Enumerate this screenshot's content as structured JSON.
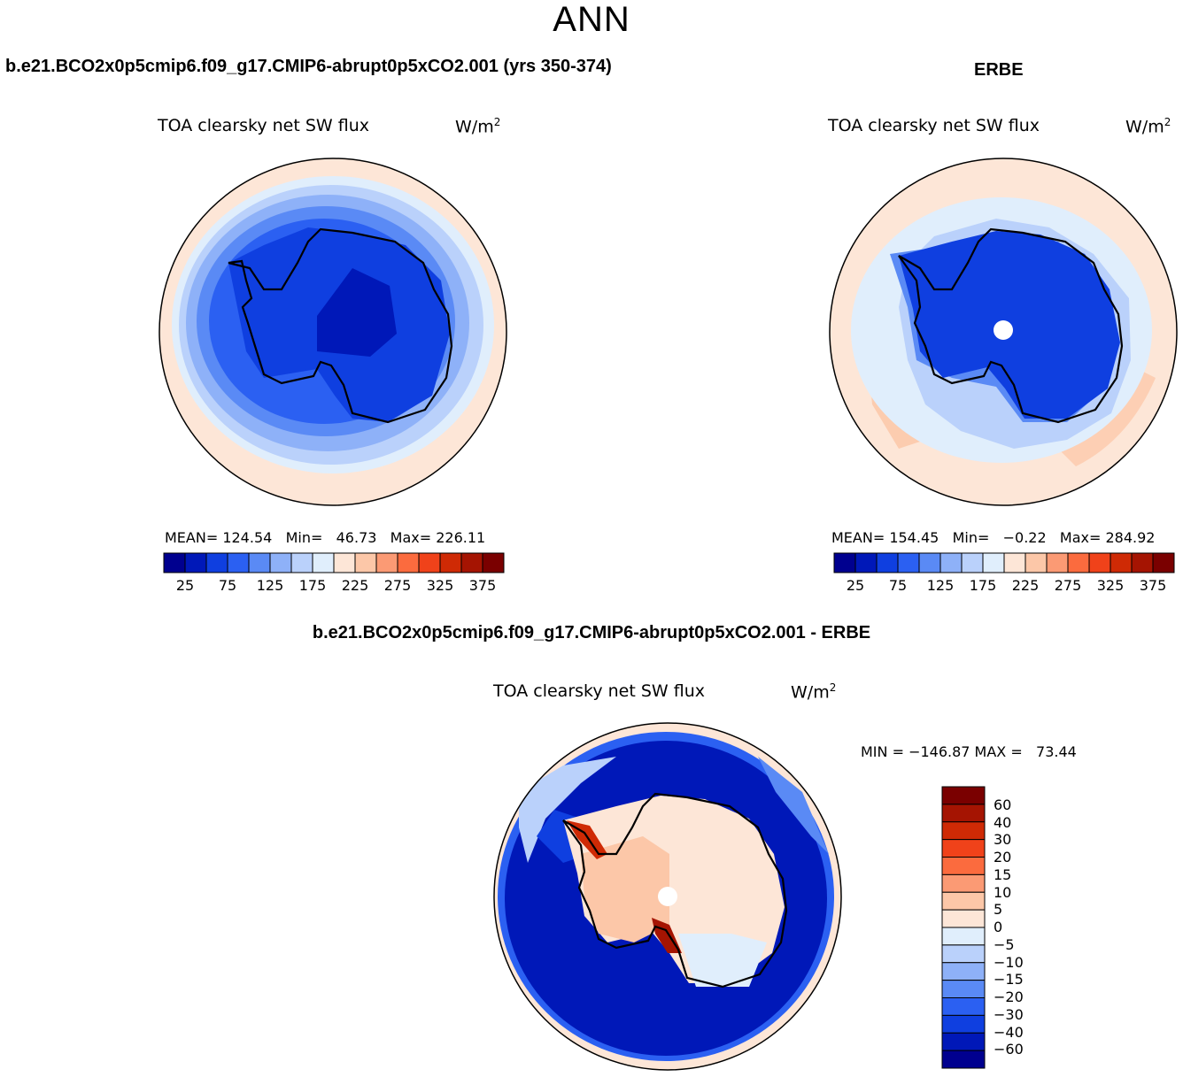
{
  "figure": {
    "title": "ANN",
    "colors": {
      "blues": [
        "#00008f",
        "#0018b8",
        "#0f3fe0",
        "#2b60f2",
        "#5a8af5",
        "#8eb1f8",
        "#bad1fb",
        "#e0eefc"
      ],
      "reds": [
        "#fde6d7",
        "#fcc7a8",
        "#fb9a74",
        "#fb6b3e",
        "#f0421a",
        "#cf2a05",
        "#a51402",
        "#7a0000"
      ],
      "land_outline": "#000000",
      "background_sea": "#fde6d7"
    }
  },
  "panels": {
    "model": {
      "case_title": "b.e21.BCO2x0p5cmip6.f09_g17.CMIP6-abrupt0p5xCO2.001 (yrs 350-374)",
      "variable": "TOA clearsky net SW flux",
      "units": "W/m",
      "units_sup": "2",
      "stats": "MEAN= 124.54   Min=   46.73   Max= 226.11",
      "colorbar_ticks": [
        "25",
        "75",
        "125",
        "175",
        "225",
        "275",
        "325",
        "375"
      ]
    },
    "obs": {
      "case_title": "ERBE",
      "variable": "TOA clearsky net SW flux",
      "units": "W/m",
      "units_sup": "2",
      "stats": "MEAN= 154.45   Min=   −0.22   Max= 284.92",
      "colorbar_ticks": [
        "25",
        "75",
        "125",
        "175",
        "225",
        "275",
        "325",
        "375"
      ]
    },
    "diff": {
      "case_title": "b.e21.BCO2x0p5cmip6.f09_g17.CMIP6-abrupt0p5xCO2.001 - ERBE",
      "variable": "TOA clearsky net SW flux",
      "units": "W/m",
      "units_sup": "2",
      "stats": "MIN = −146.87 MAX =   73.44",
      "colorbar_labels": [
        "60",
        "40",
        "30",
        "20",
        "15",
        "10",
        "5",
        "0",
        "−5",
        "−10",
        "−15",
        "−20",
        "−30",
        "−40",
        "−60"
      ]
    }
  },
  "chart_data": [
    {
      "type": "heatmap",
      "title": "TOA clearsky net SW flux",
      "subtitle": "b.e21.BCO2x0p5cmip6.f09_g17.CMIP6-abrupt0p5xCO2.001 (yrs 350-374)",
      "projection": "south-polar-stereographic",
      "units": "W/m2",
      "mean": 124.54,
      "min": 46.73,
      "max": 226.11,
      "contour_levels": [
        25,
        50,
        75,
        100,
        125,
        150,
        175,
        200,
        225,
        250,
        275,
        300,
        325,
        350,
        375
      ]
    },
    {
      "type": "heatmap",
      "title": "TOA clearsky net SW flux",
      "subtitle": "ERBE",
      "projection": "south-polar-stereographic",
      "units": "W/m2",
      "mean": 154.45,
      "min": -0.22,
      "max": 284.92,
      "contour_levels": [
        25,
        50,
        75,
        100,
        125,
        150,
        175,
        200,
        225,
        250,
        275,
        300,
        325,
        350,
        375
      ]
    },
    {
      "type": "heatmap",
      "title": "TOA clearsky net SW flux",
      "subtitle": "b.e21.BCO2x0p5cmip6.f09_g17.CMIP6-abrupt0p5xCO2.001 - ERBE",
      "projection": "south-polar-stereographic",
      "units": "W/m2",
      "min": -146.87,
      "max": 73.44,
      "contour_levels": [
        -60,
        -40,
        -30,
        -20,
        -15,
        -10,
        -5,
        0,
        5,
        10,
        15,
        20,
        30,
        40,
        60
      ]
    }
  ]
}
